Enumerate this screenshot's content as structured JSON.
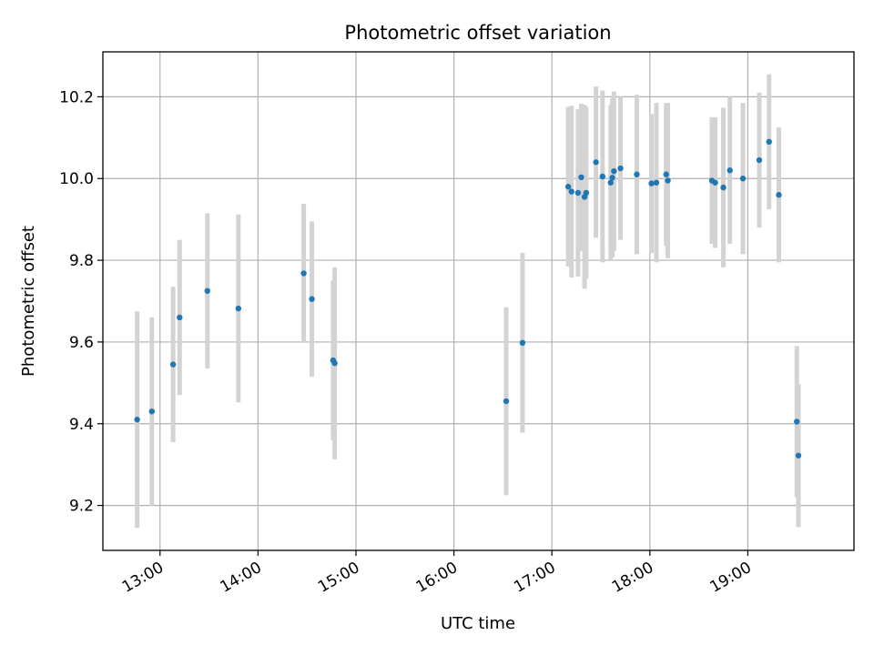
{
  "chart_data": {
    "type": "scatter",
    "title": "Photometric offset variation",
    "xlabel": "UTC time",
    "ylabel": "Photometric offset",
    "xlim": [
      "12:25",
      "20:05"
    ],
    "ylim": [
      9.09,
      10.31
    ],
    "grid": true,
    "x_ticks": [
      "13:00",
      "14:00",
      "15:00",
      "16:00",
      "17:00",
      "18:00",
      "19:00"
    ],
    "y_ticks": [
      "9.2",
      "9.4",
      "9.6",
      "9.8",
      "10.0",
      "10.2"
    ],
    "colors": {
      "points": "#1f77b4",
      "errorbars": "#d3d3d3"
    },
    "points": [
      {
        "x": "12:46",
        "y": 9.41,
        "err": 0.265
      },
      {
        "x": "12:55",
        "y": 9.43,
        "err": 0.23
      },
      {
        "x": "13:08",
        "y": 9.545,
        "err": 0.19
      },
      {
        "x": "13:12",
        "y": 9.66,
        "err": 0.19
      },
      {
        "x": "13:29",
        "y": 9.725,
        "err": 0.19
      },
      {
        "x": "13:48",
        "y": 9.682,
        "err": 0.23
      },
      {
        "x": "14:28",
        "y": 9.768,
        "err": 0.17
      },
      {
        "x": "14:33",
        "y": 9.705,
        "err": 0.19
      },
      {
        "x": "14:46",
        "y": 9.555,
        "err": 0.195
      },
      {
        "x": "14:47",
        "y": 9.548,
        "err": 0.235
      },
      {
        "x": "16:32",
        "y": 9.455,
        "err": 0.23
      },
      {
        "x": "16:42",
        "y": 9.598,
        "err": 0.22
      },
      {
        "x": "17:10",
        "y": 9.98,
        "err": 0.195
      },
      {
        "x": "17:12",
        "y": 9.968,
        "err": 0.21
      },
      {
        "x": "17:16",
        "y": 9.965,
        "err": 0.205
      },
      {
        "x": "17:18",
        "y": 10.003,
        "err": 0.18
      },
      {
        "x": "17:20",
        "y": 9.955,
        "err": 0.225
      },
      {
        "x": "17:21",
        "y": 9.965,
        "err": 0.21
      },
      {
        "x": "17:27",
        "y": 10.04,
        "err": 0.185
      },
      {
        "x": "17:31",
        "y": 10.005,
        "err": 0.21
      },
      {
        "x": "17:36",
        "y": 9.99,
        "err": 0.19
      },
      {
        "x": "17:37",
        "y": 10.002,
        "err": 0.195
      },
      {
        "x": "17:38",
        "y": 10.018,
        "err": 0.195
      },
      {
        "x": "17:42",
        "y": 10.025,
        "err": 0.175
      },
      {
        "x": "17:52",
        "y": 10.01,
        "err": 0.195
      },
      {
        "x": "18:01",
        "y": 9.988,
        "err": 0.17
      },
      {
        "x": "18:04",
        "y": 9.99,
        "err": 0.195
      },
      {
        "x": "18:10",
        "y": 10.01,
        "err": 0.175
      },
      {
        "x": "18:11",
        "y": 9.995,
        "err": 0.19
      },
      {
        "x": "18:38",
        "y": 9.995,
        "err": 0.155
      },
      {
        "x": "18:40",
        "y": 9.99,
        "err": 0.16
      },
      {
        "x": "18:45",
        "y": 9.978,
        "err": 0.195
      },
      {
        "x": "18:49",
        "y": 10.02,
        "err": 0.18
      },
      {
        "x": "18:57",
        "y": 10.0,
        "err": 0.185
      },
      {
        "x": "19:07",
        "y": 10.045,
        "err": 0.165
      },
      {
        "x": "19:13",
        "y": 10.09,
        "err": 0.165
      },
      {
        "x": "19:19",
        "y": 9.96,
        "err": 0.165
      },
      {
        "x": "19:30",
        "y": 9.405,
        "err": 0.185
      },
      {
        "x": "19:31",
        "y": 9.322,
        "err": 0.175
      }
    ]
  }
}
